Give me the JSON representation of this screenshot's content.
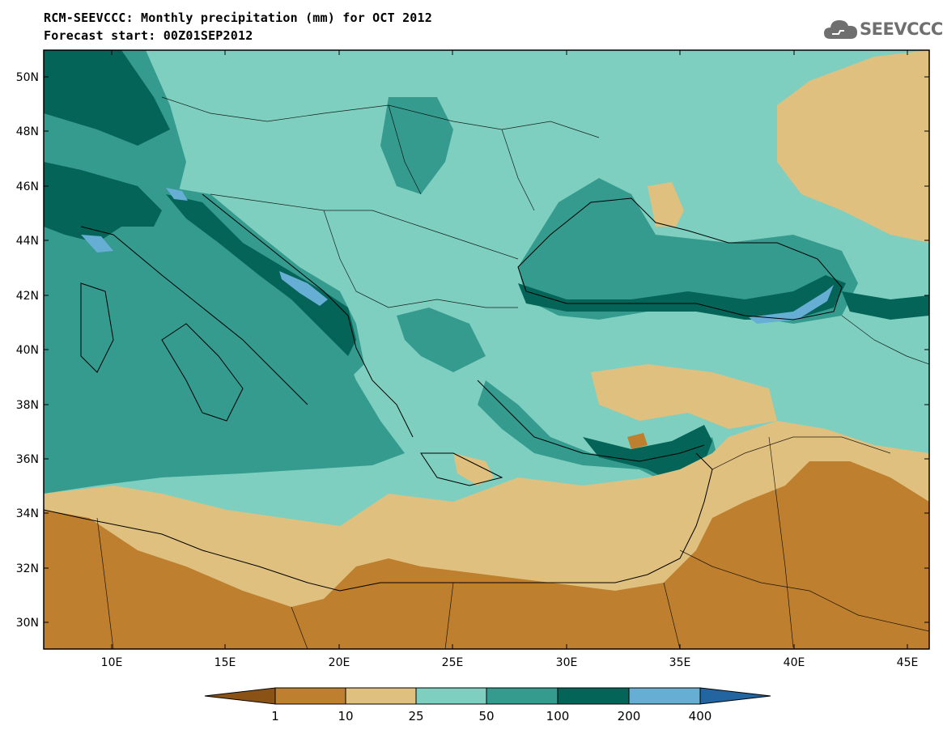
{
  "header": {
    "title_line1": "RCM-SEEVCCC: Monthly precipitation (mm) for OCT 2012",
    "title_line2": "Forecast start: 00Z01SEP2012"
  },
  "logo": {
    "text": "SEEVCCC",
    "icon": "cloud-icon"
  },
  "map": {
    "lon_labels": [
      "10E",
      "15E",
      "20E",
      "25E",
      "30E",
      "35E",
      "40E",
      "45E"
    ],
    "lat_labels": [
      "50N",
      "48N",
      "46N",
      "44N",
      "42N",
      "40N",
      "38N",
      "36N",
      "34N",
      "32N",
      "30N"
    ]
  },
  "colorbar": {
    "labels": [
      "1",
      "10",
      "25",
      "50",
      "100",
      "200",
      "400"
    ],
    "colors": [
      "#8b5216",
      "#be7f2f",
      "#e0c07f",
      "#7ecfbf",
      "#349b8e",
      "#046457",
      "#67aed5",
      "#2265a0"
    ]
  },
  "colors": {
    "very_dry": "#be7f2f",
    "dry": "#e0c07f",
    "moderate": "#7ecfbf",
    "wet": "#349b8e",
    "very_wet": "#046457",
    "extreme": "#67aed5"
  }
}
